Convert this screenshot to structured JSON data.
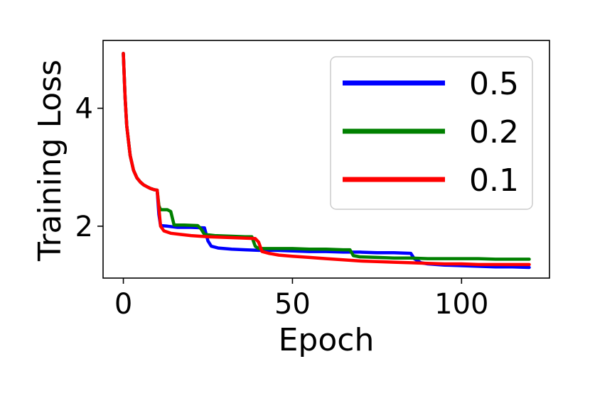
{
  "chart_data": {
    "type": "line",
    "title": "",
    "xlabel": "Epoch",
    "ylabel": "Training Loss",
    "xlim": [
      -6,
      126
    ],
    "ylim": [
      1.12,
      5.15
    ],
    "xticks": [
      0,
      50,
      100
    ],
    "xtick_labels": [
      "0",
      "50",
      "100"
    ],
    "yticks": [
      2,
      4
    ],
    "ytick_labels": [
      "2",
      "4"
    ],
    "grid": false,
    "legend_position": "top-right",
    "series": [
      {
        "name": "0.5",
        "color": "#0000ff",
        "points": [
          [
            0,
            4.93
          ],
          [
            0.5,
            4.2
          ],
          [
            1,
            3.7
          ],
          [
            2,
            3.2
          ],
          [
            3,
            2.95
          ],
          [
            4,
            2.82
          ],
          [
            5,
            2.75
          ],
          [
            6,
            2.7
          ],
          [
            7,
            2.67
          ],
          [
            8,
            2.64
          ],
          [
            9,
            2.62
          ],
          [
            10,
            2.61
          ],
          [
            10.5,
            2.2
          ],
          [
            11,
            2.01
          ],
          [
            13,
            2.0
          ],
          [
            16,
            1.98
          ],
          [
            20,
            1.98
          ],
          [
            24,
            1.97
          ],
          [
            25,
            1.75
          ],
          [
            26,
            1.66
          ],
          [
            28,
            1.63
          ],
          [
            32,
            1.61
          ],
          [
            36,
            1.6
          ],
          [
            40,
            1.59
          ],
          [
            45,
            1.59
          ],
          [
            50,
            1.58
          ],
          [
            55,
            1.57
          ],
          [
            60,
            1.57
          ],
          [
            65,
            1.56
          ],
          [
            70,
            1.56
          ],
          [
            75,
            1.55
          ],
          [
            80,
            1.55
          ],
          [
            85,
            1.54
          ],
          [
            86,
            1.45
          ],
          [
            88,
            1.38
          ],
          [
            90,
            1.36
          ],
          [
            95,
            1.34
          ],
          [
            100,
            1.33
          ],
          [
            105,
            1.32
          ],
          [
            110,
            1.31
          ],
          [
            115,
            1.31
          ],
          [
            120,
            1.3
          ]
        ]
      },
      {
        "name": "0.2",
        "color": "#008000",
        "points": [
          [
            0,
            4.93
          ],
          [
            0.5,
            4.2
          ],
          [
            1,
            3.7
          ],
          [
            2,
            3.2
          ],
          [
            3,
            2.95
          ],
          [
            4,
            2.82
          ],
          [
            5,
            2.75
          ],
          [
            6,
            2.7
          ],
          [
            7,
            2.67
          ],
          [
            8,
            2.64
          ],
          [
            9,
            2.62
          ],
          [
            10,
            2.61
          ],
          [
            10.5,
            2.35
          ],
          [
            11,
            2.28
          ],
          [
            13,
            2.28
          ],
          [
            14,
            2.25
          ],
          [
            15,
            2.02
          ],
          [
            18,
            2.02
          ],
          [
            22,
            2.01
          ],
          [
            23,
            1.95
          ],
          [
            24,
            1.86
          ],
          [
            27,
            1.84
          ],
          [
            32,
            1.83
          ],
          [
            36,
            1.82
          ],
          [
            38,
            1.82
          ],
          [
            39,
            1.66
          ],
          [
            40,
            1.62
          ],
          [
            45,
            1.62
          ],
          [
            50,
            1.62
          ],
          [
            55,
            1.61
          ],
          [
            60,
            1.61
          ],
          [
            65,
            1.6
          ],
          [
            67,
            1.6
          ],
          [
            68,
            1.5
          ],
          [
            70,
            1.48
          ],
          [
            75,
            1.47
          ],
          [
            80,
            1.46
          ],
          [
            85,
            1.46
          ],
          [
            90,
            1.45
          ],
          [
            95,
            1.45
          ],
          [
            100,
            1.45
          ],
          [
            105,
            1.45
          ],
          [
            110,
            1.44
          ],
          [
            115,
            1.44
          ],
          [
            120,
            1.44
          ]
        ]
      },
      {
        "name": "0.1",
        "color": "#ff0000",
        "points": [
          [
            0,
            4.93
          ],
          [
            0.5,
            4.2
          ],
          [
            1,
            3.7
          ],
          [
            2,
            3.2
          ],
          [
            3,
            2.95
          ],
          [
            4,
            2.82
          ],
          [
            5,
            2.75
          ],
          [
            6,
            2.7
          ],
          [
            7,
            2.67
          ],
          [
            8,
            2.64
          ],
          [
            9,
            2.62
          ],
          [
            10,
            2.61
          ],
          [
            11,
            2.0
          ],
          [
            12,
            1.92
          ],
          [
            14,
            1.88
          ],
          [
            17,
            1.86
          ],
          [
            20,
            1.84
          ],
          [
            25,
            1.82
          ],
          [
            30,
            1.81
          ],
          [
            35,
            1.8
          ],
          [
            39,
            1.79
          ],
          [
            40,
            1.73
          ],
          [
            41,
            1.57
          ],
          [
            43,
            1.54
          ],
          [
            46,
            1.51
          ],
          [
            50,
            1.49
          ],
          [
            55,
            1.47
          ],
          [
            60,
            1.45
          ],
          [
            65,
            1.43
          ],
          [
            70,
            1.41
          ],
          [
            75,
            1.4
          ],
          [
            80,
            1.39
          ],
          [
            85,
            1.38
          ],
          [
            90,
            1.37
          ],
          [
            95,
            1.36
          ],
          [
            100,
            1.36
          ],
          [
            105,
            1.35
          ],
          [
            110,
            1.35
          ],
          [
            115,
            1.35
          ],
          [
            120,
            1.35
          ]
        ]
      }
    ]
  }
}
